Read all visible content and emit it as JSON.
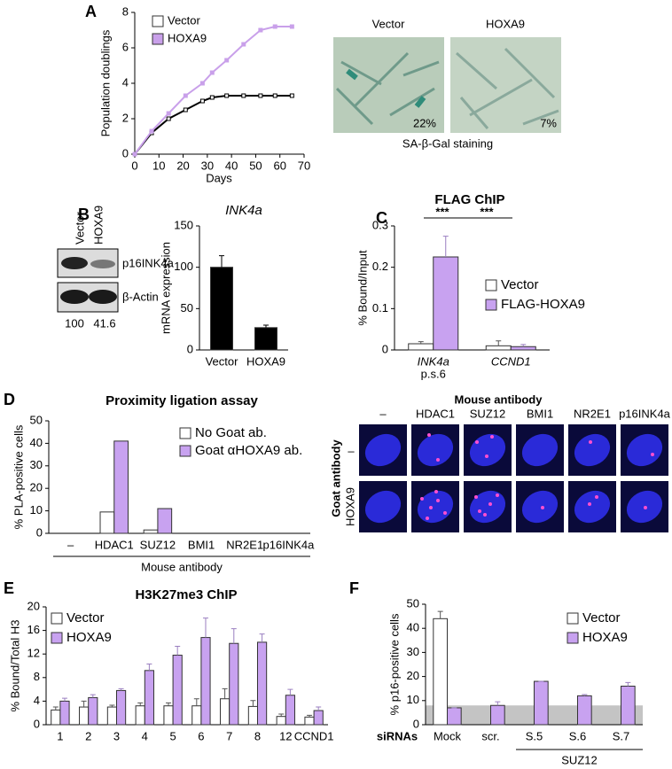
{
  "panel_labels": [
    "A",
    "B",
    "C",
    "D",
    "E",
    "F"
  ],
  "a_images": {
    "labels": [
      "Vector",
      "HOXA9"
    ],
    "percents": [
      "22%",
      "7%"
    ],
    "caption": "SA-β-Gal staining"
  },
  "b_blot": {
    "lanes": [
      "Vector",
      "HOXA9"
    ],
    "bands": [
      "p16INK4a",
      "β-Actin"
    ],
    "quantification": [
      100,
      41.6
    ]
  },
  "d_images": {
    "title": "Mouse antibody",
    "columns": [
      "–",
      "HDAC1",
      "SUZ12",
      "BMI1",
      "NR2E1",
      "p16INK4a"
    ],
    "row_axis": "Goat antibody",
    "rows": [
      "–",
      "HOXA9"
    ]
  },
  "chart_data": [
    {
      "type": "line",
      "xlabel": "Days",
      "ylabel": "Population doublings",
      "x": [
        0,
        7,
        14,
        21,
        28,
        32,
        38,
        45,
        52,
        58,
        65
      ],
      "series": [
        {
          "name": "Vector",
          "color": "#000000",
          "marker_face": "#ffffff",
          "values": [
            0,
            1.2,
            2.0,
            2.5,
            3.0,
            3.2,
            3.3,
            3.3,
            3.3,
            3.3,
            3.3
          ]
        },
        {
          "name": "HOXA9",
          "color": "#c9a0ea",
          "marker_face": "#c9a0ea",
          "values": [
            0,
            1.3,
            2.3,
            3.3,
            4.0,
            4.6,
            5.3,
            6.2,
            7.0,
            7.2,
            7.2
          ]
        }
      ],
      "xlim": [
        0,
        70
      ],
      "xticks": [
        0,
        10,
        20,
        30,
        40,
        50,
        60,
        70
      ],
      "ylim": [
        0,
        8
      ],
      "yticks": [
        0,
        2,
        4,
        6,
        8
      ],
      "legend": "upper-left"
    },
    {
      "type": "bar",
      "title": "INK4a",
      "ylabel": "mRNA expression",
      "categories": [
        "Vector",
        "HOXA9"
      ],
      "values": [
        100,
        27
      ],
      "errors": [
        14,
        3
      ],
      "color": "#000000",
      "ylim": [
        0,
        150
      ],
      "yticks": [
        0,
        50,
        100,
        150
      ]
    },
    {
      "type": "bar",
      "title": "FLAG ChIP",
      "ylabel": "% Bound/Input",
      "categories": [
        "INK4a",
        "CCND1"
      ],
      "category_sublabels": [
        "p.s.6",
        null
      ],
      "series": [
        {
          "name": "Vector",
          "color": "#ffffff",
          "values": [
            0.015,
            0.01
          ],
          "errors": [
            0.005,
            0.012
          ]
        },
        {
          "name": "FLAG-HOXA9",
          "color": "#c8a2f0",
          "values": [
            0.225,
            0.008
          ],
          "errors": [
            0.05,
            0.005
          ]
        }
      ],
      "ylim": [
        0,
        0.3
      ],
      "yticks": [
        0,
        0.1,
        0.2,
        0.3
      ],
      "significance": [
        "***",
        "***"
      ],
      "legend": "right"
    },
    {
      "type": "bar",
      "title": "Proximity ligation assay",
      "ylabel": "% PLA-positive cells",
      "xlabel": "Mouse antibody",
      "categories": [
        "–",
        "HDAC1",
        "SUZ12",
        "BMI1",
        "NR2E1",
        "p16INK4a"
      ],
      "series": [
        {
          "name": "No Goat ab.",
          "color": "#ffffff",
          "values": [
            0,
            9.5,
            1.5,
            0,
            0,
            0
          ]
        },
        {
          "name": "Goat αHOXA9 ab.",
          "color": "#c8a2f0",
          "values": [
            0,
            41,
            11,
            0,
            0,
            0
          ]
        }
      ],
      "ylim": [
        0,
        50
      ],
      "yticks": [
        0,
        10,
        20,
        30,
        40,
        50
      ],
      "legend": "upper-right"
    },
    {
      "type": "bar",
      "title": "H3K27me3 ChIP",
      "ylabel": "% Bound/Total H3",
      "categories": [
        "1",
        "2",
        "3",
        "4",
        "5",
        "6",
        "7",
        "8",
        "12",
        "CCND1"
      ],
      "series": [
        {
          "name": "Vector",
          "color": "#ffffff",
          "values": [
            2.5,
            3,
            3,
            3.2,
            3.2,
            3.2,
            4.4,
            3.1,
            1.4,
            1.3
          ],
          "errors": [
            0.5,
            1,
            0.3,
            0.5,
            0.5,
            1.2,
            1.7,
            1,
            0.4,
            0.3
          ]
        },
        {
          "name": "HOXA9",
          "color": "#c8a2f0",
          "values": [
            4,
            4.6,
            5.8,
            9.2,
            11.8,
            14.8,
            13.8,
            14,
            5,
            2.4
          ],
          "errors": [
            0.5,
            0.5,
            0.3,
            1.1,
            1.5,
            3.3,
            2.5,
            1.4,
            1,
            0.6
          ]
        }
      ],
      "ylim": [
        0,
        20
      ],
      "yticks": [
        0,
        4,
        8,
        12,
        16,
        20
      ],
      "legend": "upper-left"
    },
    {
      "type": "bar",
      "ylabel": "% p16-positive cells",
      "row_label": "siRNAs",
      "group_label": "SUZ12",
      "categories": [
        "Mock",
        "scr.",
        "S.5",
        "S.6",
        "S.7"
      ],
      "series": [
        {
          "name": "Vector",
          "color": "#ffffff",
          "values": [
            44,
            null,
            null,
            null,
            null
          ],
          "errors": [
            3,
            null,
            null,
            null,
            null
          ]
        },
        {
          "name": "HOXA9",
          "color": "#c8a2f0",
          "values": [
            7,
            8,
            18,
            12,
            16
          ],
          "errors": [
            0,
            1.5,
            0,
            0.5,
            1.5
          ]
        }
      ],
      "ylim": [
        0,
        50
      ],
      "yticks": [
        0,
        10,
        20,
        30,
        40,
        50
      ],
      "shaded_band": [
        0,
        8
      ],
      "legend": "upper-right"
    }
  ]
}
